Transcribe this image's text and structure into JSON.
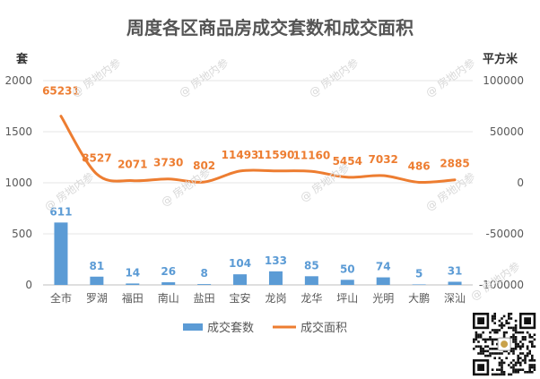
{
  "chart_data": {
    "type": "bar+line",
    "title": "周度各区商品房成交套数和成交面积",
    "left_unit": "套",
    "right_unit": "平方米",
    "categories": [
      "全市",
      "罗湖",
      "福田",
      "南山",
      "盐田",
      "宝安",
      "龙岗",
      "龙华",
      "坪山",
      "光明",
      "大鹏",
      "深汕"
    ],
    "left_axis": {
      "min": 0,
      "max": 2000,
      "ticks": [
        "0",
        "500",
        "1000",
        "1500",
        "2000"
      ]
    },
    "right_axis": {
      "min": -100000,
      "max": 100000,
      "ticks": [
        "-100000",
        "-50000",
        "0",
        "50000",
        "100000"
      ]
    },
    "series": [
      {
        "name": "成交套数",
        "kind": "bar",
        "axis": "left",
        "color": "#5b9bd5",
        "values": [
          611,
          81,
          14,
          26,
          8,
          104,
          133,
          85,
          50,
          74,
          5,
          31
        ]
      },
      {
        "name": "成交面积",
        "kind": "line",
        "axis": "right",
        "color": "#ed7d31",
        "values": [
          65231,
          8527,
          2071,
          3730,
          802,
          11493,
          11590,
          11160,
          5454,
          7032,
          486,
          2885
        ]
      }
    ],
    "legend_position": "bottom",
    "grid": true
  },
  "watermark": "房地内参"
}
